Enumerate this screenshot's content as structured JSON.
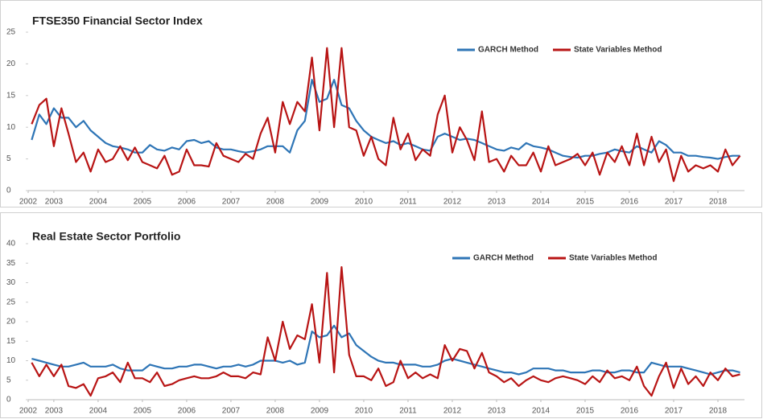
{
  "chart_data": [
    {
      "type": "line",
      "title": "FTSE350 Financial Sector Index",
      "x": [
        2002.5,
        2002.67,
        2002.83,
        2003,
        2003.17,
        2003.33,
        2003.5,
        2003.67,
        2003.83,
        2004,
        2004.17,
        2004.33,
        2004.5,
        2004.67,
        2004.83,
        2005,
        2005.17,
        2005.33,
        2005.5,
        2005.67,
        2005.83,
        2006,
        2006.17,
        2006.33,
        2006.5,
        2006.67,
        2006.83,
        2007,
        2007.17,
        2007.33,
        2007.5,
        2007.67,
        2007.83,
        2008,
        2008.17,
        2008.33,
        2008.5,
        2008.67,
        2008.83,
        2009,
        2009.17,
        2009.33,
        2009.5,
        2009.67,
        2009.83,
        2010,
        2010.17,
        2010.33,
        2010.5,
        2010.67,
        2010.83,
        2011,
        2011.17,
        2011.33,
        2011.5,
        2011.67,
        2011.83,
        2012,
        2012.17,
        2012.33,
        2012.5,
        2012.67,
        2012.83,
        2013,
        2013.17,
        2013.33,
        2013.5,
        2013.67,
        2013.83,
        2014,
        2014.17,
        2014.33,
        2014.5,
        2014.67,
        2014.83,
        2015,
        2015.17,
        2015.33,
        2015.5,
        2015.67,
        2015.83,
        2016,
        2016.17,
        2016.33,
        2016.5,
        2016.67,
        2016.83,
        2017,
        2017.17,
        2017.33,
        2017.5,
        2017.67,
        2017.83,
        2018,
        2018.17,
        2018.33,
        2018.5
      ],
      "series": [
        {
          "name": "GARCH Method",
          "color": "#2e75b6",
          "values": [
            8,
            12,
            10.5,
            13,
            11.5,
            11.5,
            10,
            11,
            9.5,
            8.5,
            7.5,
            7,
            6.8,
            6.5,
            6,
            6,
            7.2,
            6.5,
            6.3,
            6.8,
            6.5,
            7.8,
            8,
            7.5,
            7.8,
            6.8,
            6.5,
            6.5,
            6.2,
            6,
            6.2,
            6.5,
            7,
            7,
            7,
            6,
            9.5,
            11,
            17.5,
            14,
            14.5,
            17.5,
            13.5,
            13,
            11,
            9.5,
            8.5,
            8,
            7.5,
            7.8,
            7.2,
            7.5,
            7,
            6.5,
            6.3,
            8.5,
            9,
            8.5,
            8,
            8.2,
            8,
            7.5,
            7,
            6.5,
            6.3,
            6.8,
            6.5,
            7.5,
            7,
            6.8,
            6.5,
            6,
            5.5,
            5.3,
            5.2,
            5.5,
            5.5,
            5.8,
            6,
            6.5,
            6.2,
            6,
            7,
            6.5,
            6,
            7.8,
            7.2,
            6,
            6,
            5.5,
            5.5,
            5.3,
            5.2,
            5,
            5.3,
            5.5,
            5.5
          ]
        },
        {
          "name": "State Variables Method",
          "color": "#b81414",
          "values": [
            10.5,
            13.5,
            14.5,
            7,
            13,
            9,
            4.5,
            6,
            3,
            6.5,
            4.5,
            5,
            7,
            4.8,
            6.8,
            4.5,
            4,
            3.5,
            5.5,
            2.5,
            3,
            6.5,
            4,
            4,
            3.8,
            7.5,
            5.5,
            5,
            4.5,
            5.8,
            5,
            9,
            11.5,
            6,
            14,
            10.5,
            14,
            12.5,
            21,
            9.5,
            22.5,
            10,
            22.5,
            10,
            9.5,
            5.5,
            8.5,
            5,
            4,
            11.5,
            6.5,
            9,
            4.8,
            6.5,
            5.5,
            12,
            15,
            6,
            10,
            8,
            4.8,
            12.5,
            4.5,
            5,
            3,
            5.5,
            4,
            4,
            6,
            3,
            7,
            4,
            4.5,
            5,
            5.8,
            4,
            6,
            2.5,
            6,
            4.5,
            7,
            4,
            9,
            4,
            8.5,
            4.5,
            6.5,
            1.5,
            5.5,
            3,
            4,
            3.5,
            4,
            3,
            6.5,
            4,
            5.5
          ]
        }
      ],
      "xlim": [
        2002.42,
        2018.6
      ],
      "xticks": [
        {
          "value": 2002.42,
          "label": "2002"
        },
        2003,
        2004,
        2005,
        2006,
        2007,
        2008,
        2009,
        2010,
        2011,
        2012,
        2013,
        2014,
        2015,
        2016,
        2017,
        2018
      ],
      "ylim": [
        0,
        25
      ],
      "yticks": [
        0,
        5,
        10,
        15,
        20,
        25
      ],
      "legend": "top-right"
    },
    {
      "type": "line",
      "title": "Real Estate Sector Portfolio",
      "x": [
        2002.5,
        2002.67,
        2002.83,
        2003,
        2003.17,
        2003.33,
        2003.5,
        2003.67,
        2003.83,
        2004,
        2004.17,
        2004.33,
        2004.5,
        2004.67,
        2004.83,
        2005,
        2005.17,
        2005.33,
        2005.5,
        2005.67,
        2005.83,
        2006,
        2006.17,
        2006.33,
        2006.5,
        2006.67,
        2006.83,
        2007,
        2007.17,
        2007.33,
        2007.5,
        2007.67,
        2007.83,
        2008,
        2008.17,
        2008.33,
        2008.5,
        2008.67,
        2008.83,
        2009,
        2009.17,
        2009.33,
        2009.5,
        2009.67,
        2009.83,
        2010,
        2010.17,
        2010.33,
        2010.5,
        2010.67,
        2010.83,
        2011,
        2011.17,
        2011.33,
        2011.5,
        2011.67,
        2011.83,
        2012,
        2012.17,
        2012.33,
        2012.5,
        2012.67,
        2012.83,
        2013,
        2013.17,
        2013.33,
        2013.5,
        2013.67,
        2013.83,
        2014,
        2014.17,
        2014.33,
        2014.5,
        2014.67,
        2014.83,
        2015,
        2015.17,
        2015.33,
        2015.5,
        2015.67,
        2015.83,
        2016,
        2016.17,
        2016.33,
        2016.5,
        2016.67,
        2016.83,
        2017,
        2017.17,
        2017.33,
        2017.5,
        2017.67,
        2017.83,
        2018,
        2018.17,
        2018.33,
        2018.5
      ],
      "series": [
        {
          "name": "GARCH Method",
          "color": "#2e75b6",
          "values": [
            10.5,
            10,
            9.5,
            9,
            8.5,
            8.5,
            9,
            9.5,
            8.5,
            8.5,
            8.5,
            9,
            8,
            7.5,
            7.5,
            7.5,
            9,
            8.5,
            8,
            8,
            8.5,
            8.5,
            9,
            9,
            8.5,
            8,
            8.5,
            8.5,
            9,
            8.5,
            9,
            10,
            10,
            10,
            9.5,
            10,
            9,
            9.5,
            17.5,
            16,
            16.5,
            19,
            16,
            17,
            14,
            12.5,
            11,
            10,
            9.5,
            9.5,
            9,
            9,
            9,
            8.5,
            8.5,
            9,
            10,
            10.5,
            10,
            9.5,
            9,
            8.5,
            8,
            7.5,
            7,
            7,
            6.5,
            7,
            8,
            8,
            8,
            7.5,
            7.5,
            7,
            7,
            7,
            7.5,
            7.5,
            7,
            7,
            7.5,
            7.5,
            7,
            7,
            9.5,
            9,
            8.5,
            8.5,
            8.5,
            8,
            7.5,
            7,
            6.5,
            7,
            7.5,
            7.5,
            7
          ]
        },
        {
          "name": "State Variables Method",
          "color": "#b81414",
          "values": [
            9.5,
            6,
            9,
            6,
            9,
            3.5,
            3,
            4,
            1,
            5.5,
            6,
            7,
            4.5,
            9.5,
            5.5,
            5.5,
            4.5,
            7,
            3.5,
            4,
            5,
            5.5,
            6,
            5.5,
            5.5,
            6,
            7,
            6,
            6,
            5.5,
            7,
            6.5,
            16,
            10,
            20,
            13,
            16.5,
            15.5,
            24.5,
            9.5,
            32.5,
            7,
            34,
            11.5,
            6,
            6,
            5,
            8,
            3.5,
            4.5,
            10,
            5.5,
            7,
            5.5,
            6.5,
            5.5,
            14,
            10,
            13,
            12.5,
            8,
            12,
            7,
            6,
            4.5,
            5.5,
            3.5,
            5,
            6,
            5,
            4.5,
            5.5,
            6,
            5.5,
            5,
            4,
            6,
            4.5,
            7.5,
            5.5,
            6,
            5,
            8.5,
            3.5,
            1,
            6,
            9.5,
            3,
            8,
            4,
            6,
            3.5,
            7,
            5,
            8,
            6,
            6.5
          ]
        }
      ],
      "xlim": [
        2002.42,
        2018.6
      ],
      "xticks": [
        {
          "value": 2002.42,
          "label": "2002"
        },
        2003,
        2004,
        2005,
        2006,
        2007,
        2008,
        2009,
        2010,
        2011,
        2012,
        2013,
        2014,
        2015,
        2016,
        2017,
        2018
      ],
      "ylim": [
        0,
        40
      ],
      "yticks": [
        0,
        5,
        10,
        15,
        20,
        25,
        30,
        35,
        40
      ],
      "legend": "top-right"
    }
  ]
}
